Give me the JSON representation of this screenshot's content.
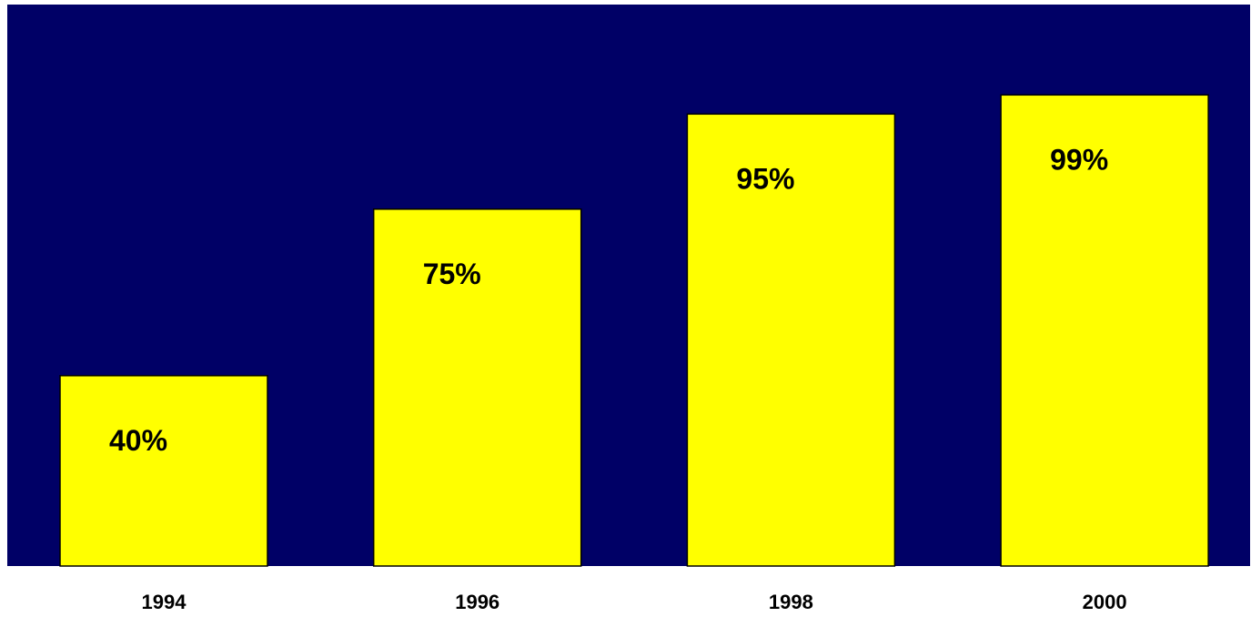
{
  "chart_data": {
    "type": "bar",
    "categories": [
      "1994",
      "1996",
      "1998",
      "2000"
    ],
    "values": [
      40,
      75,
      95,
      99
    ],
    "data_labels": [
      "40%",
      "75%",
      "95%",
      "99%"
    ],
    "title": "",
    "xlabel": "",
    "ylabel": "",
    "ylim": [
      0,
      118
    ],
    "grid": false,
    "legend": "none",
    "colors": {
      "plot_background": "#000066",
      "bar_fill": "#FFFF00",
      "bar_stroke": "#000000",
      "text": "#000000"
    }
  }
}
